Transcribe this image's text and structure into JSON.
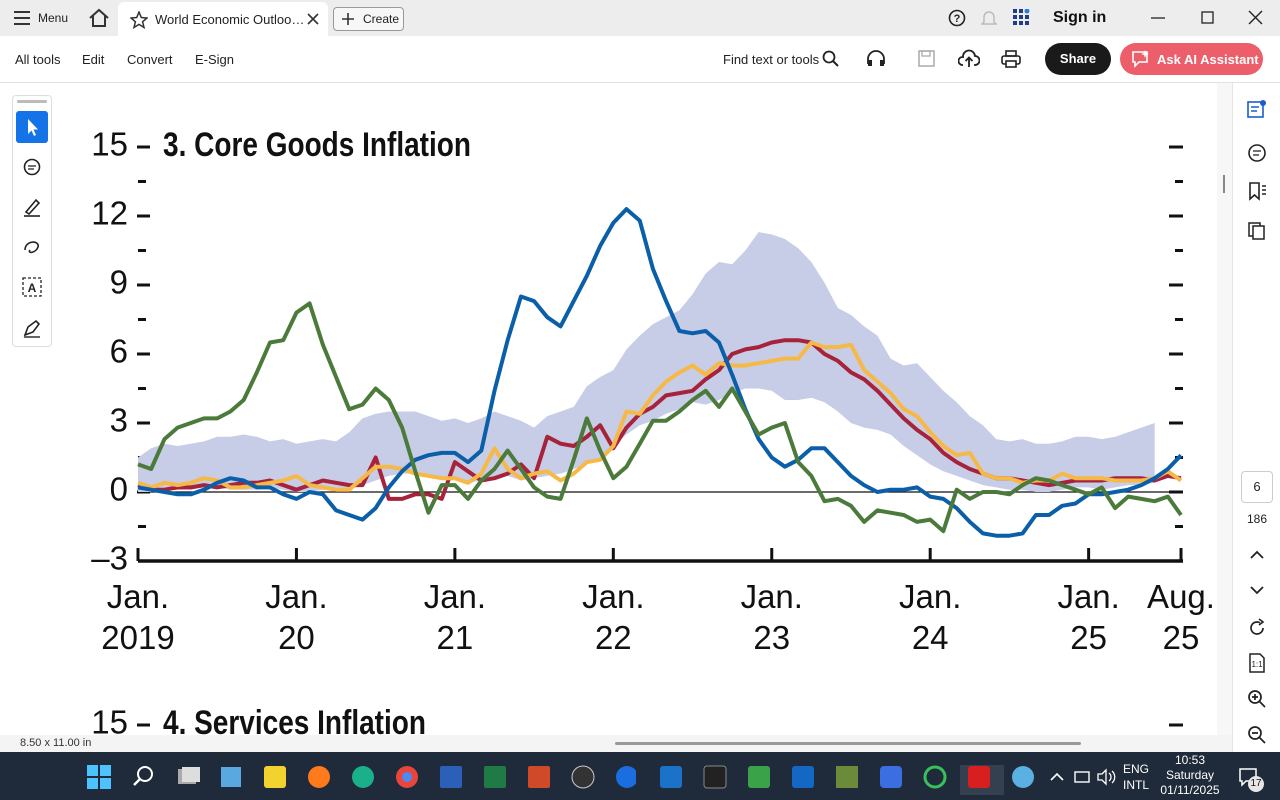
{
  "app": {
    "menu": "Menu",
    "tab_title": "World Economic Outloo…",
    "create": "Create",
    "sign_in": "Sign in",
    "toolbar": [
      "All tools",
      "Edit",
      "Convert",
      "E-Sign"
    ],
    "find": "Find text or tools",
    "share": "Share",
    "ai": "Ask AI Assistant",
    "page_number": 6,
    "page_count": 186,
    "page_size": "8.50 x 11.00 in",
    "next_chart_title": "4. Services Inflation",
    "next_chart_ytick": "15"
  },
  "taskbar": {
    "language": "ENG",
    "layout": "INTL",
    "time": "10:53",
    "day": "Saturday",
    "date": "01/11/2025",
    "notifications": "17"
  },
  "chart_data": {
    "type": "line",
    "title": "3. Core Goods Inflation",
    "x": [
      2019,
      2019.083,
      2019.167,
      2019.25,
      2019.333,
      2019.417,
      2019.5,
      2019.583,
      2019.667,
      2019.75,
      2019.833,
      2019.917,
      2020,
      2020.083,
      2020.167,
      2020.25,
      2020.333,
      2020.417,
      2020.5,
      2020.583,
      2020.667,
      2020.75,
      2020.833,
      2020.917,
      2021,
      2021.083,
      2021.167,
      2021.25,
      2021.333,
      2021.417,
      2021.5,
      2021.583,
      2021.667,
      2021.75,
      2021.833,
      2021.917,
      2022,
      2022.083,
      2022.167,
      2022.25,
      2022.333,
      2022.417,
      2022.5,
      2022.583,
      2022.667,
      2022.75,
      2022.833,
      2022.917,
      2023,
      2023.083,
      2023.167,
      2023.25,
      2023.333,
      2023.417,
      2023.5,
      2023.583,
      2023.667,
      2023.75,
      2023.833,
      2023.917,
      2024,
      2024.083,
      2024.167,
      2024.25,
      2024.333,
      2024.417,
      2024.5,
      2024.583,
      2024.667,
      2024.75,
      2024.833,
      2024.917,
      2025,
      2025.083,
      2025.167,
      2025.25,
      2025.333,
      2025.417,
      2025.5,
      2025.583
    ],
    "xlim": [
      2019,
      2025.583
    ],
    "xticks": [
      {
        "value": 2019,
        "label": "Jan.\n2019"
      },
      {
        "value": 2020,
        "label": "Jan.\n20"
      },
      {
        "value": 2021,
        "label": "Jan.\n21"
      },
      {
        "value": 2022,
        "label": "Jan.\n22"
      },
      {
        "value": 2023,
        "label": "Jan.\n23"
      },
      {
        "value": 2024,
        "label": "Jan.\n24"
      },
      {
        "value": 2025,
        "label": "Jan.\n25"
      },
      {
        "value": 2025.583,
        "label": "Aug.\n25"
      }
    ],
    "ylim": [
      -3,
      15
    ],
    "yticks": [
      15,
      12,
      9,
      6,
      3,
      0,
      {
        "value": -3,
        "label": "–3"
      }
    ],
    "band": {
      "color": "#c7cde6",
      "upper": [
        1.5,
        1.9,
        2.1,
        2.0,
        2.1,
        2.2,
        2.4,
        2.4,
        2.5,
        2.4,
        2.2,
        2.3,
        2.1,
        2.2,
        2.3,
        2.2,
        2.6,
        3.2,
        3.4,
        3.5,
        3.5,
        3.5,
        3.3,
        3.1,
        3.2,
        3.0,
        3.2,
        3.5,
        3.3,
        3.1,
        2.8,
        3.3,
        3.5,
        3.7,
        4.6,
        5.0,
        5.3,
        6.2,
        6.8,
        7.3,
        7.6,
        7.9,
        8.6,
        9.5,
        10.0,
        9.9,
        10.5,
        11.3,
        11.2,
        11.0,
        10.6,
        10.0,
        9.1,
        8.0,
        7.7,
        7.2,
        6.8,
        5.8,
        5.5,
        5.6,
        5.0,
        4.4,
        3.9,
        3.3,
        2.9,
        2.3,
        2.2,
        2.3,
        2.1,
        2.1,
        2.2,
        2.4,
        2.4,
        2.3,
        2.4,
        2.6,
        2.8,
        3.0,
        null,
        null
      ],
      "lower": [
        0.0,
        0.0,
        0.1,
        0.1,
        0.1,
        0.2,
        0.2,
        0.1,
        0.1,
        0.1,
        0.2,
        0.1,
        0.0,
        0.0,
        0.1,
        0.1,
        0.1,
        0.3,
        0.5,
        0.7,
        0.8,
        0.8,
        0.7,
        0.6,
        0.5,
        0.4,
        0.5,
        0.6,
        0.7,
        0.5,
        0.6,
        0.7,
        0.8,
        1.0,
        1.2,
        1.5,
        2.0,
        2.5,
        2.9,
        3.1,
        3.4,
        3.6,
        3.9,
        3.8,
        4.0,
        4.3,
        4.5,
        4.5,
        4.4,
        4.0,
        4.0,
        4.1,
        3.9,
        3.5,
        3.0,
        2.8,
        2.7,
        2.5,
        2.0,
        1.6,
        1.2,
        0.9,
        0.7,
        0.5,
        0.3,
        0.2,
        0.1,
        0.1,
        0.0,
        0.0,
        0.1,
        0.2,
        0.2,
        0.1,
        0.2,
        0.3,
        0.3,
        0.4,
        null,
        null
      ]
    },
    "series": [
      {
        "color": "#a6233b",
        "values": [
          0.3,
          0.1,
          0.1,
          0.2,
          0.2,
          0.3,
          0.2,
          0.3,
          0.4,
          0.4,
          0.5,
          0.3,
          0.1,
          0.3,
          0.5,
          0.4,
          0.3,
          0.3,
          1.5,
          -0.3,
          -0.3,
          -0.1,
          -0.1,
          -0.3,
          1.3,
          0.9,
          0.5,
          0.6,
          0.8,
          1.2,
          0.6,
          2.4,
          2.1,
          2.0,
          2.4,
          2.9,
          1.9,
          2.8,
          3.4,
          3.7,
          4.2,
          4.3,
          4.4,
          4.9,
          5.3,
          6.0,
          6.2,
          6.3,
          6.5,
          6.6,
          6.6,
          6.5,
          6.0,
          5.7,
          5.2,
          4.9,
          4.4,
          3.8,
          3.2,
          2.7,
          2.3,
          1.7,
          1.3,
          1.0,
          0.8,
          0.6,
          0.6,
          0.5,
          0.4,
          0.3,
          0.4,
          0.5,
          0.5,
          0.5,
          0.6,
          0.6,
          0.6,
          0.5,
          0.7,
          0.6
        ]
      },
      {
        "color": "#f6b847",
        "values": [
          0.4,
          0.2,
          0.4,
          0.3,
          0.4,
          0.6,
          0.5,
          0.2,
          0.2,
          0.3,
          0.4,
          0.5,
          0.7,
          0.3,
          0.2,
          0.1,
          0.1,
          0.6,
          1.1,
          1.1,
          1.0,
          0.8,
          0.7,
          0.6,
          0.6,
          0.4,
          0.8,
          1.9,
          1.0,
          0.6,
          0.8,
          0.9,
          0.5,
          0.8,
          1.3,
          1.4,
          2.0,
          3.5,
          3.4,
          4.2,
          4.8,
          5.2,
          5.5,
          5.1,
          5.6,
          5.5,
          5.5,
          5.6,
          5.7,
          5.8,
          5.8,
          6.5,
          6.3,
          6.3,
          6.4,
          5.3,
          4.8,
          4.3,
          3.6,
          3.3,
          2.6,
          2.0,
          1.6,
          1.7,
          0.8,
          0.6,
          0.6,
          0.4,
          0.5,
          0.5,
          0.8,
          0.6,
          0.6,
          0.6,
          0.5,
          0.5,
          0.5,
          0.6,
          0.9,
          0.5
        ]
      },
      {
        "color": "#0b5fa8",
        "values": [
          0.2,
          0.1,
          0.0,
          -0.1,
          -0.1,
          0.1,
          0.4,
          0.6,
          0.5,
          0.2,
          0.2,
          -0.1,
          -0.3,
          0.0,
          -0.1,
          -0.8,
          -1.0,
          -1.2,
          -0.7,
          0.2,
          0.9,
          1.4,
          1.6,
          1.7,
          1.7,
          1.3,
          1.8,
          4.4,
          6.6,
          8.5,
          8.3,
          7.6,
          7.2,
          8.3,
          9.4,
          10.7,
          11.7,
          12.3,
          11.8,
          9.7,
          8.3,
          7.0,
          6.9,
          7.0,
          6.5,
          5.1,
          3.6,
          2.3,
          1.5,
          1.1,
          1.4,
          1.9,
          1.9,
          1.3,
          0.7,
          0.3,
          0.0,
          0.1,
          0.1,
          0.2,
          -0.2,
          -0.3,
          -0.7,
          -1.3,
          -1.8,
          -1.9,
          -1.9,
          -1.8,
          -1.0,
          -1.0,
          -0.6,
          -0.5,
          -0.1,
          -0.1,
          0.0,
          0.1,
          0.3,
          0.6,
          1.0,
          1.6
        ]
      },
      {
        "color": "#4b7a3b",
        "values": [
          1.2,
          1.0,
          2.3,
          2.8,
          3.0,
          3.2,
          3.2,
          3.5,
          4.0,
          5.2,
          6.5,
          6.6,
          7.8,
          8.2,
          6.4,
          5.0,
          3.6,
          3.8,
          4.5,
          4.0,
          2.8,
          0.9,
          -0.9,
          0.3,
          0.3,
          -0.3,
          0.5,
          1.0,
          1.8,
          1.0,
          0.2,
          -0.2,
          -0.3,
          1.4,
          3.2,
          1.8,
          0.6,
          1.1,
          2.1,
          3.1,
          3.1,
          3.5,
          4.0,
          4.4,
          3.7,
          4.5,
          3.5,
          2.5,
          2.8,
          3.0,
          1.3,
          0.7,
          -0.4,
          -0.3,
          -0.6,
          -1.3,
          -0.8,
          -0.9,
          -1.0,
          -1.3,
          -1.2,
          -1.7,
          0.1,
          -0.3,
          0.0,
          0.0,
          -0.1,
          0.3,
          0.6,
          0.5,
          0.3,
          0.1,
          -0.1,
          0.2,
          -0.7,
          -0.2,
          -0.3,
          -0.4,
          -0.2,
          -1.0
        ]
      }
    ]
  }
}
